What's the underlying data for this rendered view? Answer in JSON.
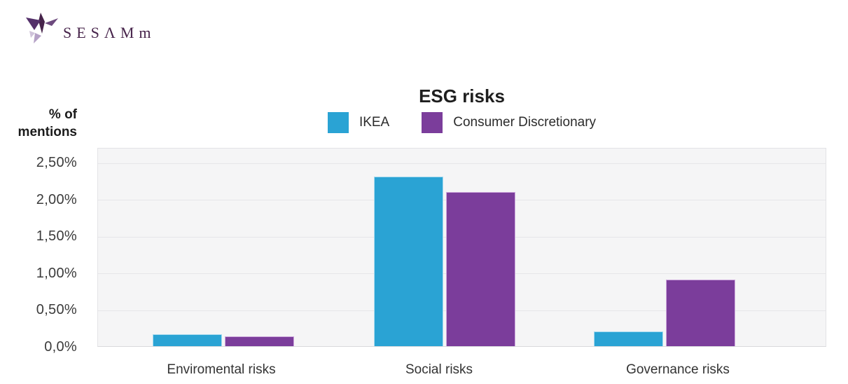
{
  "logo": {
    "text": "SESΛMm"
  },
  "chart": {
    "y_axis_label": [
      "% of",
      "mentions"
    ]
  },
  "chart_data": {
    "type": "bar",
    "title": "ESG risks",
    "categories": [
      "Enviromental risks",
      "Social risks",
      "Governance risks"
    ],
    "series": [
      {
        "name": "IKEA",
        "color": "#2aa3d4",
        "border_color": "#a9dbef",
        "values": [
          0.16,
          2.3,
          0.2
        ]
      },
      {
        "name": "Consumer Discretionary",
        "color": "#7b3d9b",
        "border_color": "#cfaade",
        "values": [
          0.13,
          2.09,
          0.9
        ]
      }
    ],
    "xlabel": "",
    "ylabel": "% of mentions",
    "ylim": [
      0,
      2.7
    ],
    "ytick_values": [
      0,
      0.5,
      1.0,
      1.5,
      2.0,
      2.5
    ],
    "ytick_labels": [
      "0,0%",
      "0,50%",
      "1,00%",
      "1,50%",
      "2,00%",
      "2,50%"
    ],
    "grid": true,
    "legend_position": "top"
  }
}
